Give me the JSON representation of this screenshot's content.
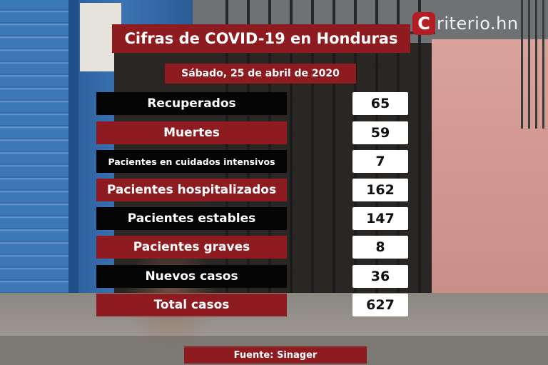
{
  "brand": {
    "logo_letter": "C",
    "logo_text": "riterio.hn"
  },
  "title": "Cifras de COVID-19 en Honduras",
  "date": "Sábado, 25 de abril de 2020",
  "stats": [
    {
      "label": "Recuperados",
      "value": "65",
      "style": "black"
    },
    {
      "label": "Muertes",
      "value": "59",
      "style": "red"
    },
    {
      "label": "Pacientes en cuidados intensivos",
      "value": "7",
      "style": "black"
    },
    {
      "label": "Pacientes hospitalizados",
      "value": "162",
      "style": "red"
    },
    {
      "label": "Pacientes estables",
      "value": "147",
      "style": "black"
    },
    {
      "label": "Pacientes graves",
      "value": "8",
      "style": "red"
    },
    {
      "label": "Nuevos casos",
      "value": "36",
      "style": "black"
    },
    {
      "label": "Total casos",
      "value": "627",
      "style": "red"
    }
  ],
  "source": "Fuente: Sinager",
  "colors": {
    "accent_red": "#8e1b1f",
    "black": "#050505",
    "value_bg": "#ffffff",
    "logo_red": "#b51d24"
  }
}
